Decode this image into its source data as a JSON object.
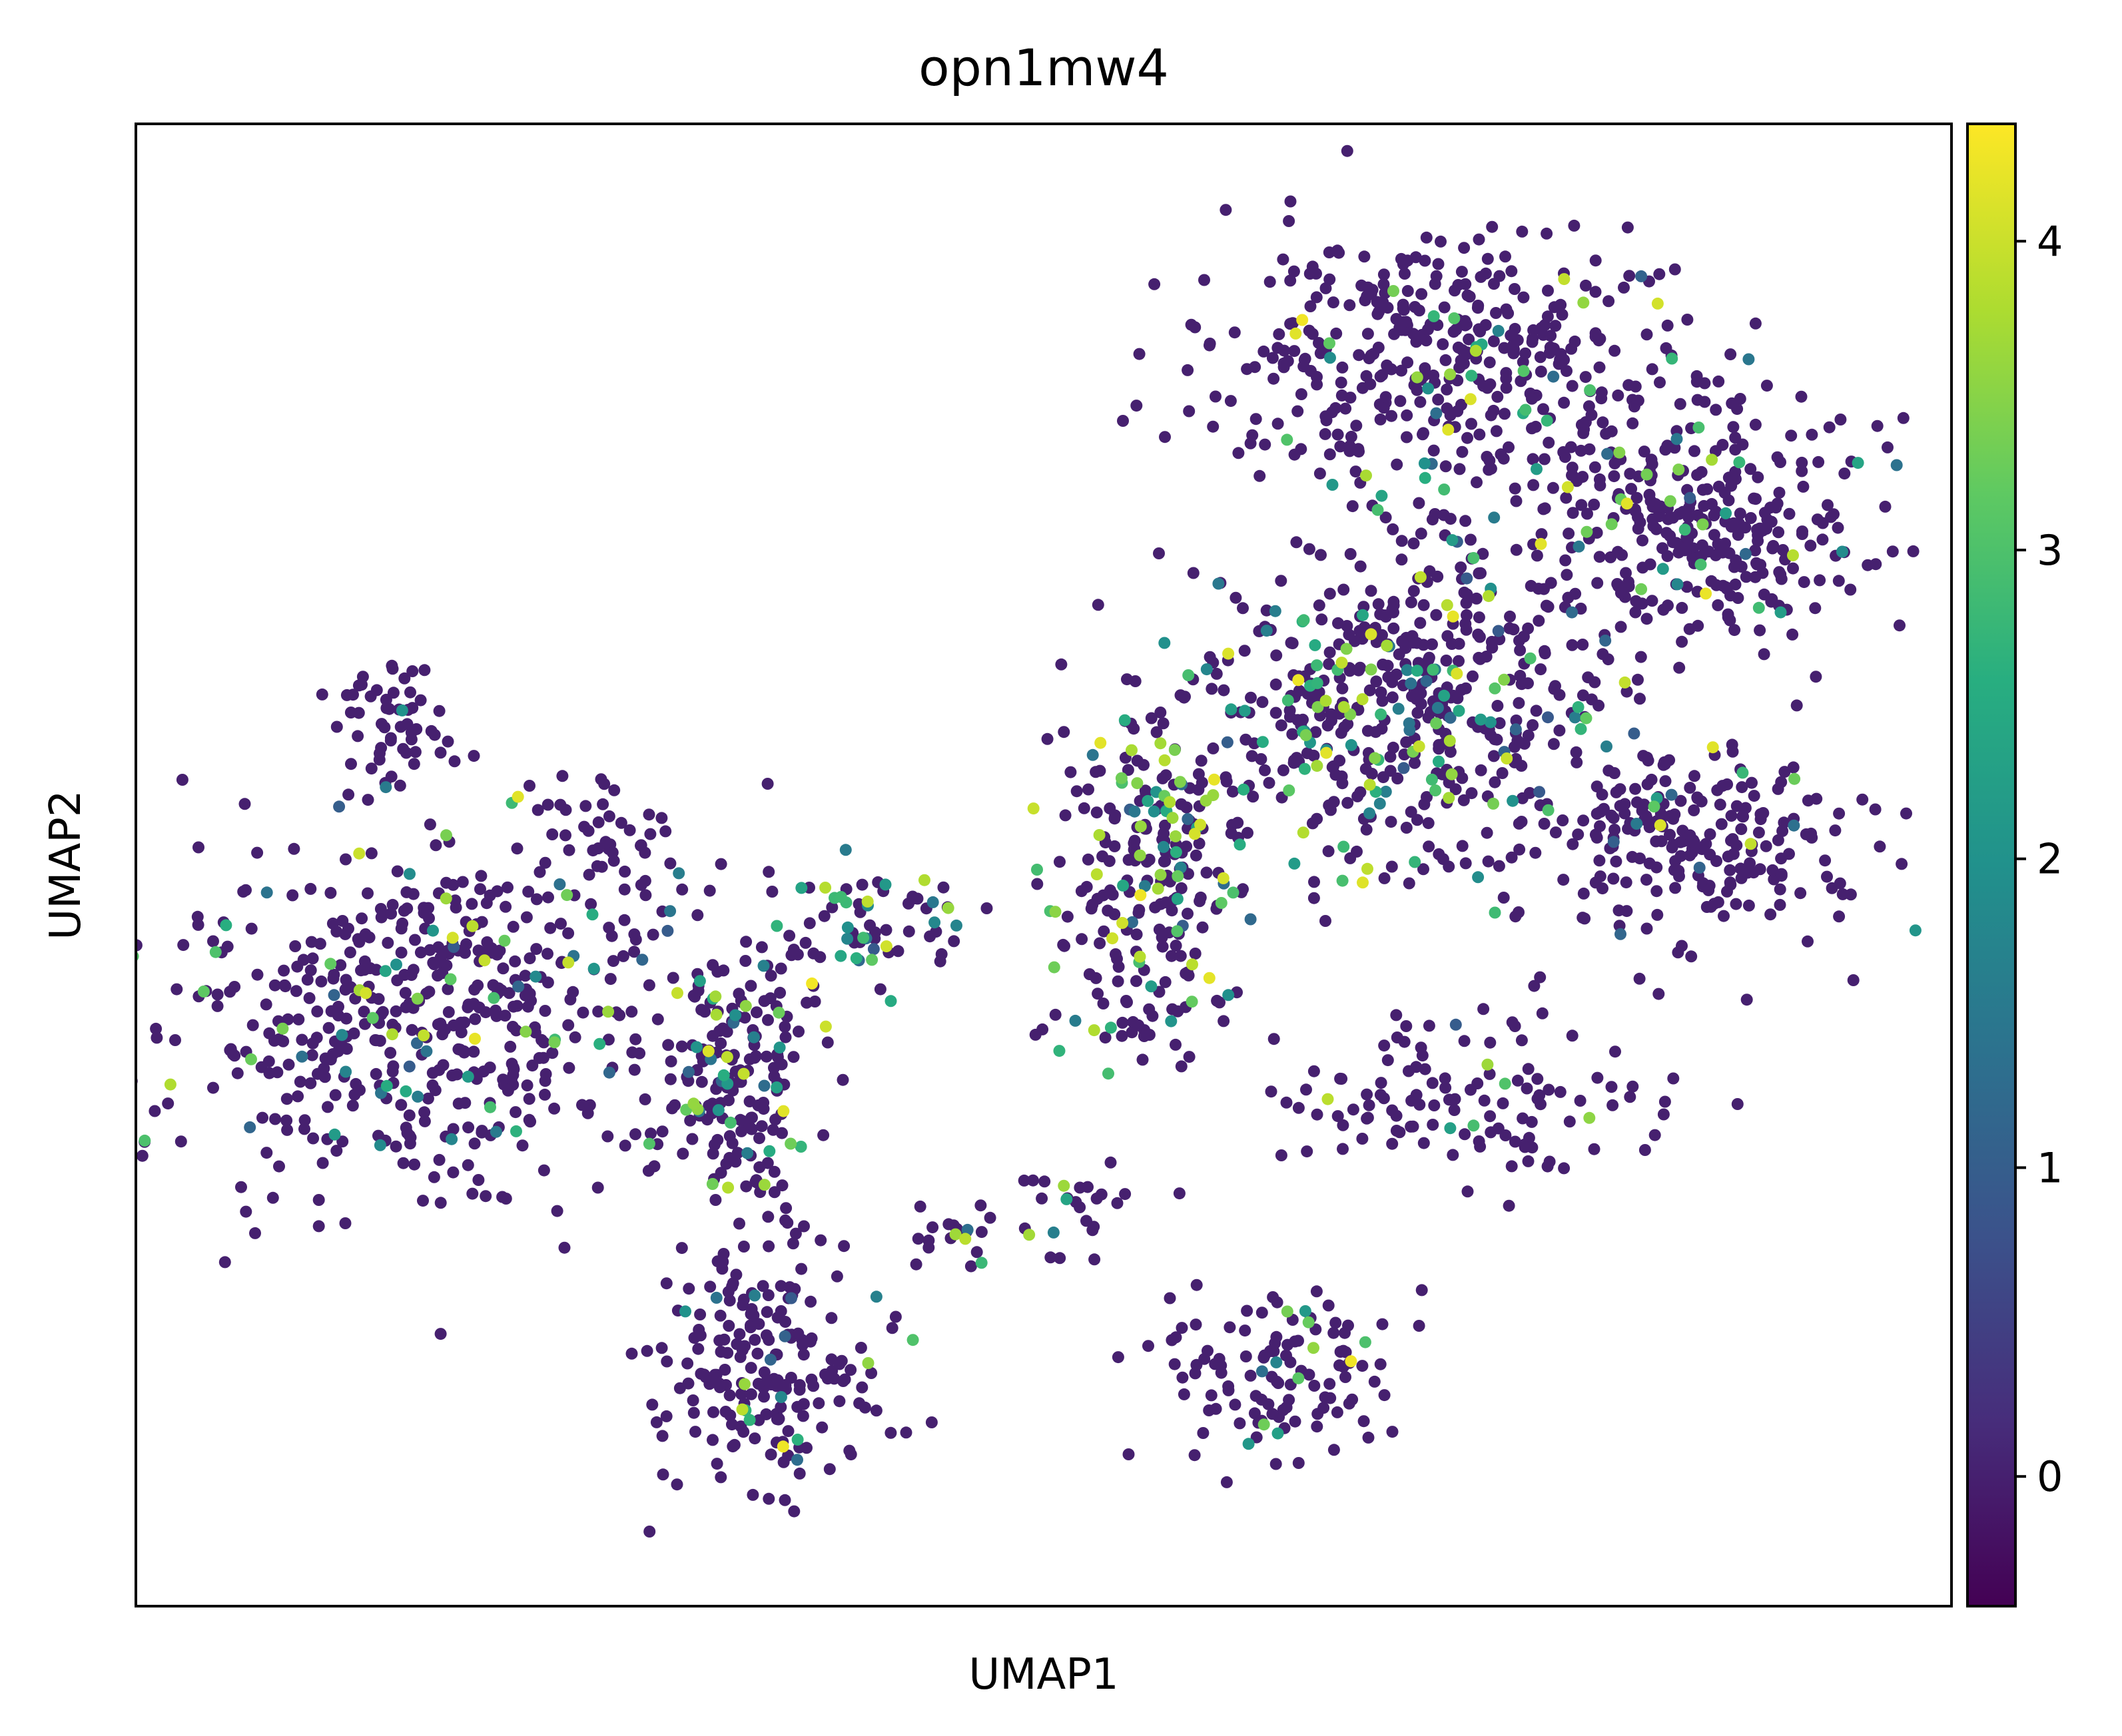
{
  "chart_data": {
    "type": "scatter",
    "title": "opn1mw4",
    "xlabel": "UMAP1",
    "ylabel": "UMAP2",
    "x_ticks": [],
    "y_ticks": [],
    "xlim": [
      0,
      100
    ],
    "ylim": [
      0,
      100
    ],
    "grid": false,
    "legend": "none",
    "colorbar": {
      "label": "",
      "colormap": "viridis",
      "min": -0.42,
      "max": 4.38,
      "ticks": [
        0,
        1,
        2,
        3,
        4
      ],
      "tick_labels": [
        "0",
        "1",
        "2",
        "3",
        "4"
      ]
    },
    "background_color": "#440154",
    "clusters": [
      {
        "cx": 73,
        "cy": 84,
        "rx": 13,
        "ry": 8,
        "n": 430,
        "high_fraction": 0.1
      },
      {
        "cx": 86,
        "cy": 73,
        "rx": 8,
        "ry": 7,
        "n": 300,
        "high_fraction": 0.11
      },
      {
        "cx": 70,
        "cy": 61,
        "rx": 11,
        "ry": 10,
        "n": 520,
        "high_fraction": 0.26
      },
      {
        "cx": 56,
        "cy": 49,
        "rx": 5,
        "ry": 12,
        "n": 260,
        "high_fraction": 0.3
      },
      {
        "cx": 86,
        "cy": 52,
        "rx": 8,
        "ry": 6,
        "n": 230,
        "high_fraction": 0.06
      },
      {
        "cx": 74,
        "cy": 34,
        "rx": 9,
        "ry": 5,
        "n": 120,
        "high_fraction": 0.06
      },
      {
        "cx": 16,
        "cy": 40,
        "rx": 13,
        "ry": 11,
        "n": 540,
        "high_fraction": 0.15
      },
      {
        "cx": 14,
        "cy": 60,
        "rx": 3,
        "ry": 3.5,
        "n": 55,
        "high_fraction": 0.03
      },
      {
        "cx": 26,
        "cy": 52,
        "rx": 4,
        "ry": 3,
        "n": 40,
        "high_fraction": 0.02
      },
      {
        "cx": 33,
        "cy": 36,
        "rx": 4,
        "ry": 10,
        "n": 200,
        "high_fraction": 0.18
      },
      {
        "cx": 35,
        "cy": 16,
        "rx": 6,
        "ry": 7,
        "n": 200,
        "high_fraction": 0.08
      },
      {
        "cx": 41,
        "cy": 46,
        "rx": 5,
        "ry": 4,
        "n": 70,
        "high_fraction": 0.25
      },
      {
        "cx": 63,
        "cy": 16,
        "rx": 6,
        "ry": 5,
        "n": 120,
        "high_fraction": 0.08
      },
      {
        "cx": 45,
        "cy": 25,
        "rx": 3,
        "ry": 2,
        "n": 20,
        "high_fraction": 0.2
      },
      {
        "cx": 52,
        "cy": 27,
        "rx": 4,
        "ry": 3,
        "n": 25,
        "high_fraction": 0.2
      }
    ]
  }
}
